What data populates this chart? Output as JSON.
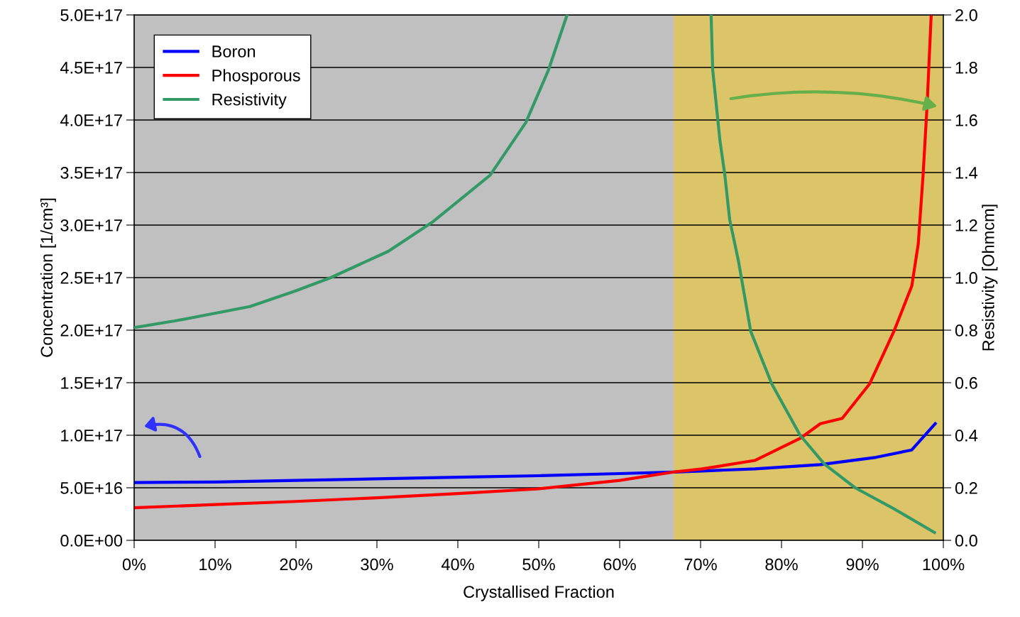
{
  "chart_data": {
    "type": "line",
    "xlabel": "Crystallised Fraction",
    "ylabel": "Concentration [1/cm³]",
    "y2label": "Resistivity [Ohmcm]",
    "xlim": [
      0,
      100
    ],
    "xticks": [
      {
        "value": 0,
        "label": "0%"
      },
      {
        "value": 10,
        "label": "10%"
      },
      {
        "value": 20,
        "label": "20%"
      },
      {
        "value": 30,
        "label": "30%"
      },
      {
        "value": 40,
        "label": "40%"
      },
      {
        "value": 50,
        "label": "50%"
      },
      {
        "value": 60,
        "label": "60%"
      },
      {
        "value": 70,
        "label": "70%"
      },
      {
        "value": 80,
        "label": "80%"
      },
      {
        "value": 90,
        "label": "90%"
      },
      {
        "value": 100,
        "label": "100%"
      }
    ],
    "ylim": [
      0,
      5e+17
    ],
    "yticks": [
      {
        "value": 0,
        "label": "0.0E+00"
      },
      {
        "value": 5e+16,
        "label": "5.0E+16"
      },
      {
        "value": 1e+17,
        "label": "1.0E+17"
      },
      {
        "value": 1.5e+17,
        "label": "1.5E+17"
      },
      {
        "value": 2e+17,
        "label": "2.0E+17"
      },
      {
        "value": 2.5e+17,
        "label": "2.5E+17"
      },
      {
        "value": 3e+17,
        "label": "3.0E+17"
      },
      {
        "value": 3.5e+17,
        "label": "3.5E+17"
      },
      {
        "value": 4e+17,
        "label": "4.0E+17"
      },
      {
        "value": 4.5e+17,
        "label": "4.5E+17"
      },
      {
        "value": 5e+17,
        "label": "5.0E+17"
      }
    ],
    "y2lim": [
      0,
      2.0
    ],
    "y2ticks": [
      {
        "value": 0,
        "label": "0.0"
      },
      {
        "value": 0.2,
        "label": "0.2"
      },
      {
        "value": 0.4,
        "label": "0.4"
      },
      {
        "value": 0.6,
        "label": "0.6"
      },
      {
        "value": 0.8,
        "label": "0.8"
      },
      {
        "value": 1.0,
        "label": "1.0"
      },
      {
        "value": 1.2,
        "label": "1.2"
      },
      {
        "value": 1.4,
        "label": "1.4"
      },
      {
        "value": 1.6,
        "label": "1.6"
      },
      {
        "value": 1.8,
        "label": "1.8"
      },
      {
        "value": 2.0,
        "label": "2.0"
      }
    ],
    "grid": "y",
    "legend": "top left",
    "bands": [
      {
        "axis": "x",
        "from": 66.7,
        "to": 100,
        "color": "#dcc468"
      }
    ],
    "series": [
      {
        "name": "Boron",
        "color": "#0000ff",
        "x": [
          0,
          10,
          20,
          30,
          40,
          50,
          60,
          66.7,
          70.2,
          76.7,
          84.8,
          91.7,
          96.1,
          99.0
        ],
        "values": [
          5.5e+16,
          5.55e+16,
          5.7e+16,
          5.85e+16,
          6e+16,
          6.15e+16,
          6.35e+16,
          6.5e+16,
          6.6e+16,
          6.8e+16,
          7.2e+16,
          7.9e+16,
          8.6e+16,
          1.11e+17
        ]
      },
      {
        "name": "Phosporous",
        "color": "#ff0000",
        "x": [
          0,
          10,
          20,
          30,
          40,
          50,
          60,
          66.7,
          70.2,
          76.7,
          82.3,
          84.8,
          87.5,
          90.9,
          93.9,
          96.1,
          96.9,
          97.5,
          98.0,
          98.5
        ],
        "values": [
          3.1e+16,
          3.4e+16,
          3.7e+16,
          4.05e+16,
          4.45e+16,
          4.9e+16,
          5.7e+16,
          6.5e+16,
          6.8e+16,
          7.6e+16,
          9.7e+16,
          1.11e+17,
          1.16e+17,
          1.49e+17,
          1.99e+17,
          2.42e+17,
          2.82e+17,
          3.48e+17,
          4.15e+17,
          5e+17
        ]
      },
      {
        "name": "Resistivity",
        "color": "#339966",
        "axis": "y2",
        "x": [
          0,
          5,
          14.3,
          20,
          24.3,
          31.4,
          36.8,
          44.0,
          48.4,
          51.2,
          53.5,
          62,
          71.3,
          71.5,
          72.4,
          73.0,
          73.6,
          74.7,
          76.2,
          78.8,
          82.3,
          85.3,
          89.1,
          93.9,
          98.9
        ],
        "values": [
          0.81,
          0.835,
          0.89,
          0.95,
          1.0,
          1.1,
          1.21,
          1.39,
          1.59,
          1.79,
          2.0,
          null,
          2.0,
          1.79,
          1.52,
          1.39,
          1.22,
          1.06,
          0.795,
          0.595,
          0.4,
          0.29,
          0.2,
          0.12,
          0.03
        ]
      }
    ]
  }
}
